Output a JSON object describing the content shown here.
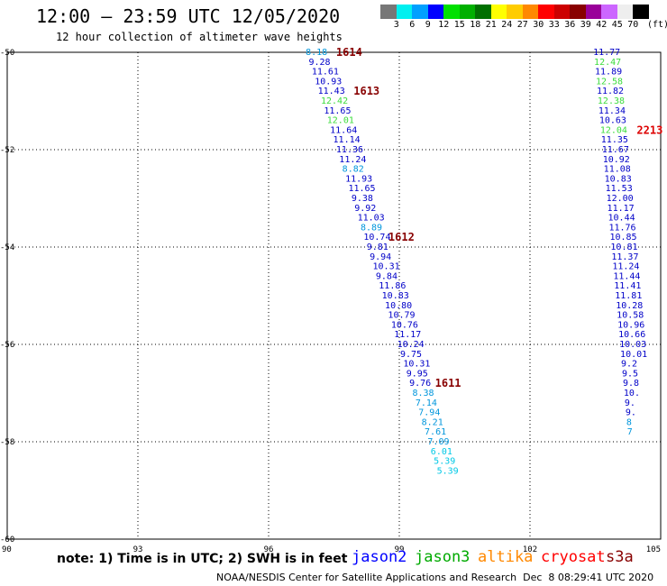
{
  "title": "12:00 — 23:59 UTC 12/05/2020",
  "subtitle": "12 hour collection of altimeter wave heights",
  "colorbar": {
    "unit": "(ft)",
    "swatches": [
      {
        "color": "#777777",
        "label": "3"
      },
      {
        "color": "#00f0f0",
        "label": "6"
      },
      {
        "color": "#00a0ff",
        "label": "9"
      },
      {
        "color": "#0000ff",
        "label": "12"
      },
      {
        "color": "#00e000",
        "label": "15"
      },
      {
        "color": "#00b000",
        "label": "18"
      },
      {
        "color": "#007000",
        "label": "21"
      },
      {
        "color": "#ffff00",
        "label": "24"
      },
      {
        "color": "#ffcc00",
        "label": "27"
      },
      {
        "color": "#ff8800",
        "label": "30"
      },
      {
        "color": "#ff0000",
        "label": "33"
      },
      {
        "color": "#cc0000",
        "label": "36"
      },
      {
        "color": "#880000",
        "label": "39"
      },
      {
        "color": "#990099",
        "label": "42"
      },
      {
        "color": "#cc66ff",
        "label": "45"
      },
      {
        "color": "#eeeeee",
        "label": "70"
      },
      {
        "color": "#000000",
        "label": ""
      }
    ]
  },
  "axes": {
    "lat_labels": [
      "-50",
      "-52",
      "-54",
      "-56",
      "-58",
      "-60"
    ],
    "lon_labels": [
      "90",
      "93",
      "96",
      "99",
      "102",
      "105"
    ]
  },
  "map_data": {
    "lat_range": [
      -60,
      -50
    ],
    "lon_range": [
      90,
      105
    ],
    "colors": {
      "c6": "#00c8e6",
      "c9": "#0096dc",
      "c12": "#0000c8",
      "c15": "#3cdc3c",
      "time": "#880000",
      "time_red": "#dd0000"
    },
    "track1": [
      {
        "lat": -50.0,
        "lon": 96.85,
        "v": "8.18",
        "c": "c9"
      },
      {
        "lat": -50.2,
        "lon": 96.92,
        "v": "9.28",
        "c": "c12"
      },
      {
        "lat": -50.4,
        "lon": 96.99,
        "v": "11.61",
        "c": "c12"
      },
      {
        "lat": -50.6,
        "lon": 97.06,
        "v": "10.93",
        "c": "c12"
      },
      {
        "lat": -50.8,
        "lon": 97.13,
        "v": "11.43",
        "c": "c12"
      },
      {
        "lat": -51.0,
        "lon": 97.2,
        "v": "12.42",
        "c": "c15"
      },
      {
        "lat": -51.2,
        "lon": 97.27,
        "v": "11.65",
        "c": "c12"
      },
      {
        "lat": -51.4,
        "lon": 97.34,
        "v": "12.01",
        "c": "c15"
      },
      {
        "lat": -51.6,
        "lon": 97.41,
        "v": "11.64",
        "c": "c12"
      },
      {
        "lat": -51.8,
        "lon": 97.48,
        "v": "11.14",
        "c": "c12"
      },
      {
        "lat": -52.0,
        "lon": 97.55,
        "v": "11.36",
        "c": "c12"
      },
      {
        "lat": -52.2,
        "lon": 97.62,
        "v": "11.24",
        "c": "c12"
      },
      {
        "lat": -52.4,
        "lon": 97.69,
        "v": "8.82",
        "c": "c9"
      },
      {
        "lat": -52.6,
        "lon": 97.76,
        "v": "11.93",
        "c": "c12"
      },
      {
        "lat": -52.8,
        "lon": 97.83,
        "v": "11.65",
        "c": "c12"
      },
      {
        "lat": -53.0,
        "lon": 97.9,
        "v": "9.38",
        "c": "c12"
      },
      {
        "lat": -53.2,
        "lon": 97.97,
        "v": "9.92",
        "c": "c12"
      },
      {
        "lat": -53.4,
        "lon": 98.04,
        "v": "11.03",
        "c": "c12"
      },
      {
        "lat": -53.6,
        "lon": 98.11,
        "v": "8.89",
        "c": "c9"
      },
      {
        "lat": -53.8,
        "lon": 98.18,
        "v": "10.74",
        "c": "c12"
      },
      {
        "lat": -54.0,
        "lon": 98.25,
        "v": "9.81",
        "c": "c12"
      },
      {
        "lat": -54.2,
        "lon": 98.32,
        "v": "9.94",
        "c": "c12"
      },
      {
        "lat": -54.4,
        "lon": 98.39,
        "v": "10.31",
        "c": "c12"
      },
      {
        "lat": -54.6,
        "lon": 98.46,
        "v": "9.84",
        "c": "c12"
      },
      {
        "lat": -54.8,
        "lon": 98.53,
        "v": "11.86",
        "c": "c12"
      },
      {
        "lat": -55.0,
        "lon": 98.6,
        "v": "10.83",
        "c": "c12"
      },
      {
        "lat": -55.2,
        "lon": 98.67,
        "v": "10.80",
        "c": "c12"
      },
      {
        "lat": -55.4,
        "lon": 98.74,
        "v": "10.79",
        "c": "c12"
      },
      {
        "lat": -55.6,
        "lon": 98.81,
        "v": "10.76",
        "c": "c12"
      },
      {
        "lat": -55.8,
        "lon": 98.88,
        "v": "11.17",
        "c": "c12"
      },
      {
        "lat": -56.0,
        "lon": 98.95,
        "v": "10.24",
        "c": "c12"
      },
      {
        "lat": -56.2,
        "lon": 99.02,
        "v": "9.75",
        "c": "c12"
      },
      {
        "lat": -56.4,
        "lon": 99.09,
        "v": "10.31",
        "c": "c12"
      },
      {
        "lat": -56.6,
        "lon": 99.16,
        "v": "9.95",
        "c": "c12"
      },
      {
        "lat": -56.8,
        "lon": 99.23,
        "v": "9.76",
        "c": "c12"
      },
      {
        "lat": -57.0,
        "lon": 99.3,
        "v": "8.38",
        "c": "c9"
      },
      {
        "lat": -57.2,
        "lon": 99.37,
        "v": "7.14",
        "c": "c9"
      },
      {
        "lat": -57.4,
        "lon": 99.44,
        "v": "7.94",
        "c": "c9"
      },
      {
        "lat": -57.6,
        "lon": 99.51,
        "v": "8.21",
        "c": "c9"
      },
      {
        "lat": -57.8,
        "lon": 99.58,
        "v": "7.61",
        "c": "c9"
      },
      {
        "lat": -58.0,
        "lon": 99.65,
        "v": "7.09",
        "c": "c9"
      },
      {
        "lat": -58.2,
        "lon": 99.72,
        "v": "6.01",
        "c": "c6"
      },
      {
        "lat": -58.4,
        "lon": 99.79,
        "v": "5.39",
        "c": "c6"
      },
      {
        "lat": -58.6,
        "lon": 99.86,
        "v": "5.39",
        "c": "c6"
      }
    ],
    "track2": [
      {
        "lat": -50.0,
        "lon": 103.45,
        "v": "11.77",
        "c": "c12"
      },
      {
        "lat": -50.2,
        "lon": 103.47,
        "v": "12.47",
        "c": "c15"
      },
      {
        "lat": -50.4,
        "lon": 103.49,
        "v": "11.89",
        "c": "c12"
      },
      {
        "lat": -50.6,
        "lon": 103.51,
        "v": "12.58",
        "c": "c15"
      },
      {
        "lat": -50.8,
        "lon": 103.53,
        "v": "11.82",
        "c": "c12"
      },
      {
        "lat": -51.0,
        "lon": 103.55,
        "v": "12.38",
        "c": "c15"
      },
      {
        "lat": -51.2,
        "lon": 103.57,
        "v": "11.34",
        "c": "c12"
      },
      {
        "lat": -51.4,
        "lon": 103.59,
        "v": "10.63",
        "c": "c12"
      },
      {
        "lat": -51.6,
        "lon": 103.61,
        "v": "12.04",
        "c": "c15"
      },
      {
        "lat": -51.8,
        "lon": 103.63,
        "v": "11.35",
        "c": "c12"
      },
      {
        "lat": -52.0,
        "lon": 103.65,
        "v": "11.67",
        "c": "c12"
      },
      {
        "lat": -52.2,
        "lon": 103.67,
        "v": "10.92",
        "c": "c12"
      },
      {
        "lat": -52.4,
        "lon": 103.69,
        "v": "11.08",
        "c": "c12"
      },
      {
        "lat": -52.6,
        "lon": 103.71,
        "v": "10.83",
        "c": "c12"
      },
      {
        "lat": -52.8,
        "lon": 103.73,
        "v": "11.53",
        "c": "c12"
      },
      {
        "lat": -53.0,
        "lon": 103.75,
        "v": "12.00",
        "c": "c12"
      },
      {
        "lat": -53.2,
        "lon": 103.77,
        "v": "11.17",
        "c": "c12"
      },
      {
        "lat": -53.4,
        "lon": 103.79,
        "v": "10.44",
        "c": "c12"
      },
      {
        "lat": -53.6,
        "lon": 103.81,
        "v": "11.76",
        "c": "c12"
      },
      {
        "lat": -53.8,
        "lon": 103.83,
        "v": "10.85",
        "c": "c12"
      },
      {
        "lat": -54.0,
        "lon": 103.85,
        "v": "10.81",
        "c": "c12"
      },
      {
        "lat": -54.2,
        "lon": 103.87,
        "v": "11.37",
        "c": "c12"
      },
      {
        "lat": -54.4,
        "lon": 103.89,
        "v": "11.24",
        "c": "c12"
      },
      {
        "lat": -54.6,
        "lon": 103.91,
        "v": "11.44",
        "c": "c12"
      },
      {
        "lat": -54.8,
        "lon": 103.93,
        "v": "11.41",
        "c": "c12"
      },
      {
        "lat": -55.0,
        "lon": 103.95,
        "v": "11.81",
        "c": "c12"
      },
      {
        "lat": -55.2,
        "lon": 103.97,
        "v": "10.28",
        "c": "c12"
      },
      {
        "lat": -55.4,
        "lon": 103.99,
        "v": "10.58",
        "c": "c12"
      },
      {
        "lat": -55.6,
        "lon": 104.01,
        "v": "10.96",
        "c": "c12"
      },
      {
        "lat": -55.8,
        "lon": 104.03,
        "v": "10.66",
        "c": "c12"
      },
      {
        "lat": -56.0,
        "lon": 104.05,
        "v": "10.03",
        "c": "c12"
      },
      {
        "lat": -56.2,
        "lon": 104.07,
        "v": "10.01",
        "c": "c12"
      },
      {
        "lat": -56.4,
        "lon": 104.09,
        "v": "9.2",
        "c": "c12"
      },
      {
        "lat": -56.6,
        "lon": 104.11,
        "v": "9.5",
        "c": "c12"
      },
      {
        "lat": -56.8,
        "lon": 104.13,
        "v": "9.8",
        "c": "c12"
      },
      {
        "lat": -57.0,
        "lon": 104.15,
        "v": "10.",
        "c": "c12"
      },
      {
        "lat": -57.2,
        "lon": 104.17,
        "v": "9.",
        "c": "c12"
      },
      {
        "lat": -57.4,
        "lon": 104.19,
        "v": "9.",
        "c": "c12"
      },
      {
        "lat": -57.6,
        "lon": 104.21,
        "v": "8",
        "c": "c9"
      },
      {
        "lat": -57.8,
        "lon": 104.23,
        "v": "7",
        "c": "c9"
      }
    ],
    "time_labels": [
      {
        "text": "1614",
        "lat": -50.0,
        "lon": 97.55,
        "c": "time"
      },
      {
        "text": "1613",
        "lat": -50.8,
        "lon": 97.95,
        "c": "time"
      },
      {
        "text": "1612",
        "lat": -53.8,
        "lon": 98.75,
        "c": "time"
      },
      {
        "text": "1611",
        "lat": -56.8,
        "lon": 99.82,
        "c": "time"
      },
      {
        "text": "2213",
        "lat": -51.6,
        "lon": 104.45,
        "c": "time_red"
      }
    ]
  },
  "footer": {
    "note": "note: 1) Time is in UTC; 2) SWH is in feet",
    "satellites": [
      {
        "name": "jason2",
        "color": "#0000ff"
      },
      {
        "name": "jason3",
        "color": "#00aa00"
      },
      {
        "name": "altika",
        "color": "#ff8800"
      },
      {
        "name": "cryosat",
        "color": "#ff0000"
      },
      {
        "name": "s3a",
        "color": "#880000"
      }
    ],
    "credit": "NOAA/NESDIS Center for Satellite Applications and Research",
    "timestamp": "Dec  8 08:29:41 UTC 2020"
  }
}
